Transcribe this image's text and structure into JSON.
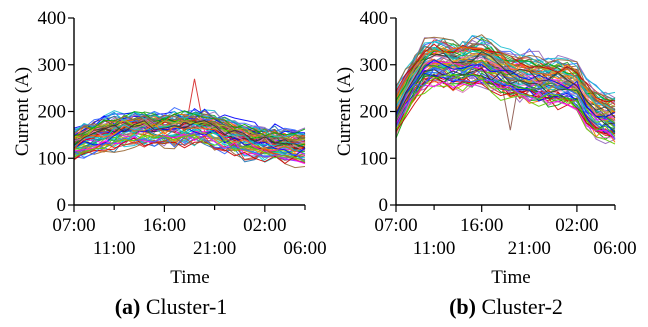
{
  "chart_data": [
    {
      "type": "line",
      "panel": "a",
      "caption_tag": "(a)",
      "caption_text": "Cluster-1",
      "ylabel": "Current (A)",
      "xlabel": "Time",
      "ylim": [
        0,
        400
      ],
      "yticks": [
        "0",
        "100",
        "200",
        "300",
        "400"
      ],
      "xticks_upper": [
        "07:00",
        "16:00",
        "02:00"
      ],
      "xticks_lower": [
        "11:00",
        "21:00",
        "06:00"
      ],
      "x": [
        "07:00",
        "08:00",
        "09:00",
        "10:00",
        "11:00",
        "12:00",
        "13:00",
        "14:00",
        "15:00",
        "16:00",
        "17:00",
        "18:00",
        "19:00",
        "20:00",
        "21:00",
        "22:00",
        "23:00",
        "00:00",
        "01:00",
        "02:00",
        "03:00",
        "04:00",
        "05:00",
        "06:00"
      ],
      "series_count": 80,
      "mean_profile": [
        130,
        138,
        146,
        152,
        158,
        162,
        164,
        165,
        164,
        163,
        164,
        166,
        168,
        167,
        160,
        152,
        146,
        140,
        136,
        132,
        130,
        128,
        126,
        125
      ],
      "spread": 38,
      "outlier_peak": {
        "x": "19:00",
        "y": 270
      },
      "grid": false
    },
    {
      "type": "line",
      "panel": "b",
      "caption_tag": "(b)",
      "caption_text": "Cluster-2",
      "ylabel": "Current (A)",
      "xlabel": "Time",
      "ylim": [
        0,
        400
      ],
      "yticks": [
        "0",
        "100",
        "200",
        "300",
        "400"
      ],
      "xticks_upper": [
        "07:00",
        "16:00",
        "02:00"
      ],
      "xticks_lower": [
        "11:00",
        "21:00",
        "06:00"
      ],
      "x": [
        "07:00",
        "08:00",
        "09:00",
        "10:00",
        "11:00",
        "12:00",
        "13:00",
        "14:00",
        "15:00",
        "16:00",
        "17:00",
        "18:00",
        "19:00",
        "20:00",
        "21:00",
        "22:00",
        "23:00",
        "00:00",
        "01:00",
        "02:00",
        "03:00",
        "04:00",
        "05:00",
        "06:00"
      ],
      "series_count": 80,
      "mean_profile": [
        200,
        240,
        275,
        300,
        308,
        305,
        300,
        302,
        306,
        308,
        298,
        288,
        280,
        276,
        272,
        268,
        266,
        265,
        262,
        255,
        220,
        200,
        192,
        188
      ],
      "spread": 55,
      "outlier_dip": {
        "x": "19:00",
        "y": 160
      },
      "grid": false
    }
  ]
}
